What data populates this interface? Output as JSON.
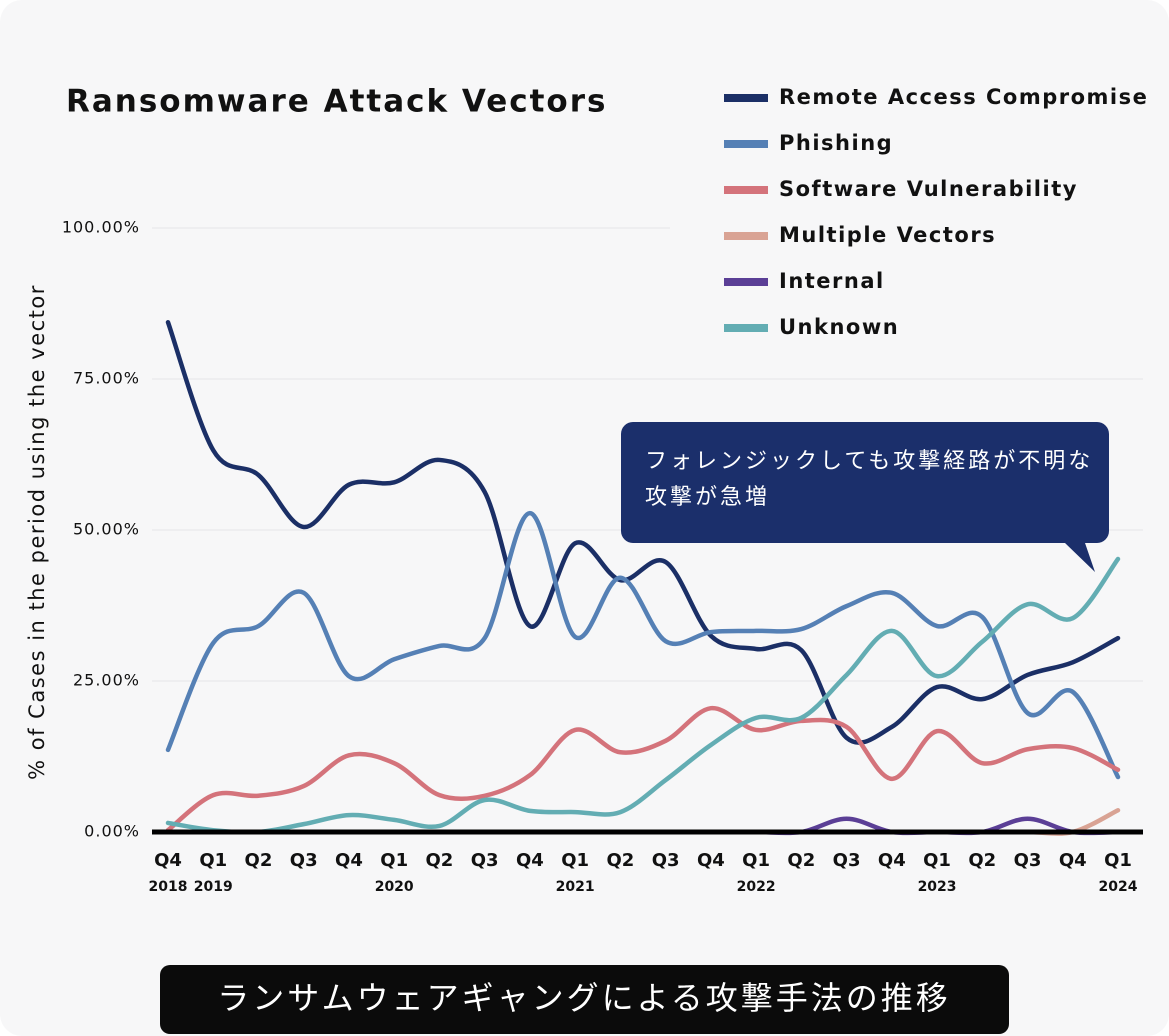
{
  "chart_data": {
    "type": "line",
    "title": "Ransomware Attack Vectors",
    "y_label": "% of Cases in the period using the vector",
    "categories": [
      "Q4",
      "Q1",
      "Q2",
      "Q3",
      "Q4",
      "Q1",
      "Q2",
      "Q3",
      "Q4",
      "Q1",
      "Q2",
      "Q3",
      "Q4",
      "Q1",
      "Q2",
      "Q3",
      "Q4",
      "Q1",
      "Q2",
      "Q3",
      "Q4",
      "Q1"
    ],
    "category_years": [
      "2018",
      "2019",
      null,
      null,
      null,
      "2020",
      null,
      null,
      null,
      "2021",
      null,
      null,
      null,
      "2022",
      null,
      null,
      null,
      "2023",
      null,
      null,
      null,
      "2024"
    ],
    "ylim": [
      0,
      100
    ],
    "yticks": [
      {
        "value": 0,
        "label": "0.00%"
      },
      {
        "value": 25,
        "label": "25.00%"
      },
      {
        "value": 50,
        "label": "50.00%"
      },
      {
        "value": 75,
        "label": "75.00%"
      },
      {
        "value": 100,
        "label": "100.00%"
      }
    ],
    "grid": true,
    "legend": "top-right",
    "series": [
      {
        "name": "Remote Access Compromise",
        "color": "#1b2f66",
        "values": [
          84.4,
          63.2,
          59.1,
          50.5,
          57.5,
          57.9,
          61.6,
          56.3,
          34.1,
          47.8,
          41.7,
          44.7,
          32.5,
          30.3,
          30.1,
          15.6,
          17.4,
          24.0,
          22.0,
          26.0,
          28.1,
          32.1
        ]
      },
      {
        "name": "Phishing",
        "color": "#5580b5",
        "values": [
          13.6,
          31.3,
          34.1,
          39.6,
          25.8,
          28.6,
          30.8,
          32.1,
          52.8,
          32.3,
          42.1,
          31.6,
          33.1,
          33.3,
          33.6,
          37.4,
          39.6,
          34.1,
          35.6,
          19.7,
          23.2,
          9.1
        ]
      },
      {
        "name": "Software Vulnerability",
        "color": "#d4737b",
        "values": [
          0.3,
          6.1,
          6.0,
          7.6,
          12.7,
          11.4,
          6.1,
          6.0,
          9.4,
          16.9,
          13.2,
          15.1,
          20.5,
          16.9,
          18.4,
          17.4,
          8.8,
          16.7,
          11.4,
          13.7,
          13.9,
          10.3
        ]
      },
      {
        "name": "Multiple Vectors",
        "color": "#d9a394",
        "values": [
          0,
          0,
          0,
          0,
          0,
          0,
          0,
          0,
          0,
          0,
          0,
          0,
          0,
          0,
          0,
          0,
          0,
          0,
          0,
          0,
          0,
          3.6
        ]
      },
      {
        "name": "Internal",
        "color": "#5b3f96",
        "values": [
          0,
          0,
          0,
          0,
          0,
          0,
          0,
          0,
          0,
          0,
          0,
          0,
          0,
          0,
          0,
          2.2,
          0,
          0,
          0,
          2.2,
          0,
          0
        ]
      },
      {
        "name": "Unknown",
        "color": "#63adb3",
        "values": [
          1.5,
          0.3,
          0,
          1.3,
          2.8,
          2.0,
          1.0,
          5.3,
          3.5,
          3.3,
          3.3,
          8.6,
          14.4,
          18.9,
          18.9,
          26.0,
          33.3,
          25.8,
          31.5,
          37.7,
          35.4,
          45.2
        ]
      }
    ],
    "annotation": "フォレンジックしても攻撃経路が不明な攻撃が急増",
    "caption": "ランサムウェアギャングによる攻撃手法の推移"
  }
}
